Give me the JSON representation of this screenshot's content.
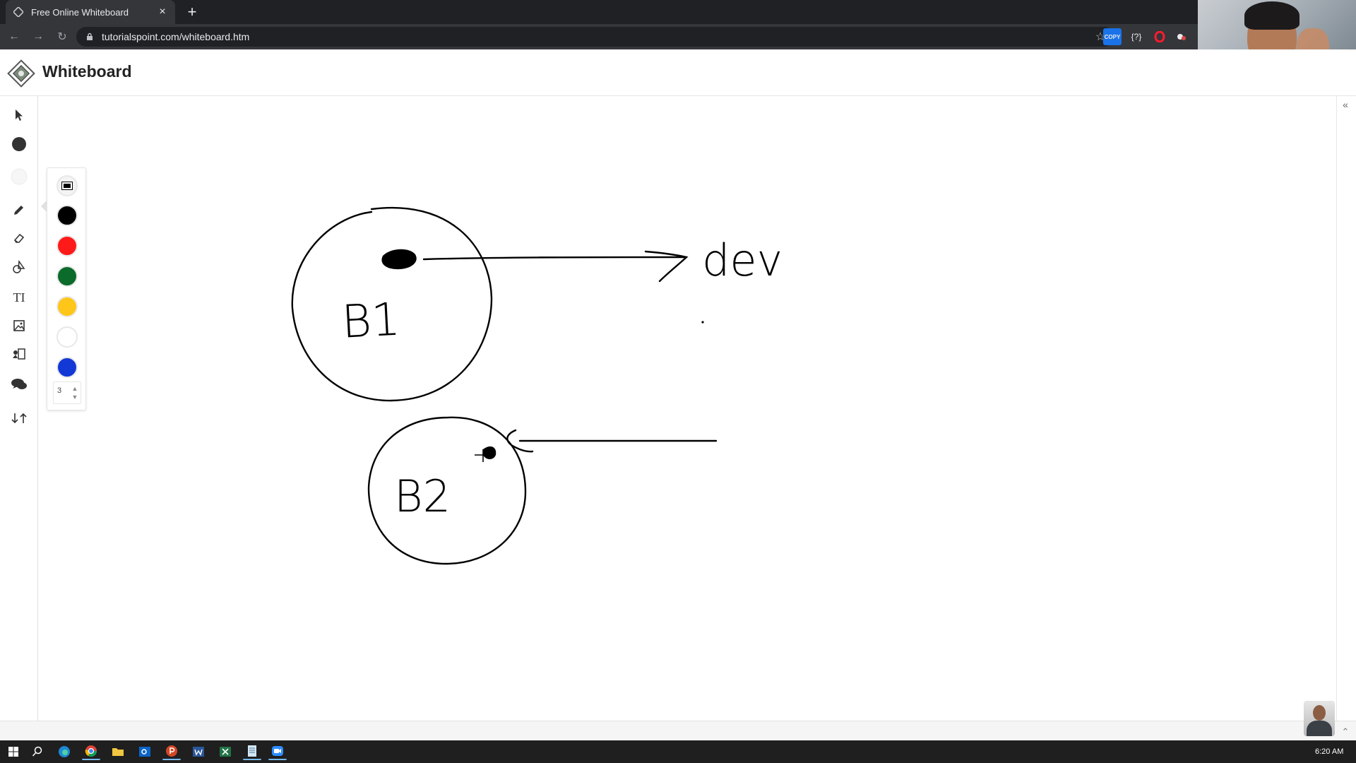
{
  "browser": {
    "tab_title": "Free Online Whiteboard",
    "url": "tutorialspoint.com/whiteboard.htm",
    "new_tab_label": "+",
    "extensions": [
      "copy-extension-icon",
      "help-extension-icon",
      "opera-icon",
      "extension-puzzle-icon"
    ],
    "copy_ext_label": "COPY",
    "help_ext_label": "{?}"
  },
  "app": {
    "title": "Whiteboard"
  },
  "toolbar": {
    "tools": [
      "select-tool",
      "fill-color-tool",
      "stroke-color-tool",
      "pen-tool",
      "eraser-tool",
      "shapes-tool",
      "text-tool",
      "image-tool",
      "insert-tool",
      "comment-tool",
      "move-tool"
    ],
    "text_tool_label": "TI"
  },
  "color_panel": {
    "colors": [
      "#000000",
      "#ff1a1a",
      "#0b6b2b",
      "#ffc61a",
      "#ffffff",
      "#1238d6"
    ],
    "size_value": "3"
  },
  "canvas": {
    "label_b1": "B1",
    "label_b2": "B2",
    "label_dev": "dev"
  },
  "taskbar": {
    "clock": "6:20 AM"
  }
}
